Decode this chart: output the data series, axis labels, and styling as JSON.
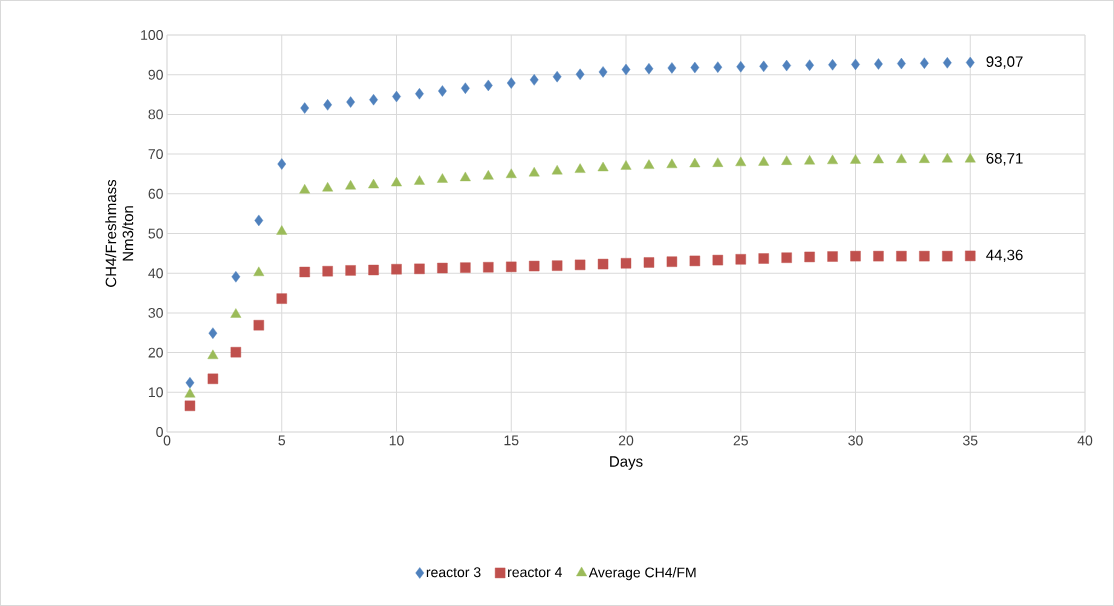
{
  "chart_data": {
    "type": "scatter",
    "xlabel": "Days",
    "ylabel": "CH4/Freshmass Nm3/ton",
    "x": [
      1,
      2,
      3,
      4,
      5,
      6,
      7,
      8,
      9,
      10,
      11,
      12,
      13,
      14,
      15,
      16,
      17,
      18,
      19,
      20,
      21,
      22,
      23,
      24,
      25,
      26,
      27,
      28,
      29,
      30,
      31,
      32,
      33,
      34,
      35
    ],
    "series": [
      {
        "name": "reactor 3",
        "color": "#4f81bd",
        "marker": "diamond",
        "values": [
          12.4,
          24.9,
          39.1,
          53.3,
          67.5,
          81.6,
          82.4,
          83.1,
          83.7,
          84.5,
          85.2,
          85.9,
          86.6,
          87.3,
          87.9,
          88.7,
          89.5,
          90.1,
          90.7,
          91.3,
          91.5,
          91.7,
          91.8,
          91.9,
          92.0,
          92.1,
          92.3,
          92.4,
          92.5,
          92.6,
          92.7,
          92.8,
          92.9,
          93.0,
          93.07
        ],
        "value_labels": [
          null,
          null,
          null,
          null,
          null,
          null,
          null,
          null,
          null,
          null,
          null,
          null,
          null,
          null,
          null,
          null,
          null,
          null,
          null,
          null,
          null,
          null,
          null,
          null,
          null,
          null,
          null,
          null,
          null,
          null,
          null,
          null,
          null,
          null,
          "93,07"
        ]
      },
      {
        "name": "reactor 4",
        "color": "#c0504d",
        "marker": "square",
        "values": [
          6.6,
          13.4,
          20.1,
          26.9,
          33.6,
          40.3,
          40.5,
          40.7,
          40.8,
          41.0,
          41.1,
          41.3,
          41.4,
          41.5,
          41.6,
          41.8,
          41.9,
          42.1,
          42.3,
          42.5,
          42.7,
          42.9,
          43.1,
          43.3,
          43.5,
          43.7,
          43.9,
          44.1,
          44.2,
          44.3,
          44.3,
          44.3,
          44.3,
          44.3,
          44.36
        ],
        "value_labels": [
          null,
          null,
          null,
          null,
          null,
          null,
          null,
          null,
          null,
          null,
          null,
          null,
          null,
          null,
          null,
          null,
          null,
          null,
          null,
          null,
          null,
          null,
          null,
          null,
          null,
          null,
          null,
          null,
          null,
          null,
          null,
          null,
          null,
          null,
          "44,36"
        ]
      },
      {
        "name": "Average CH4/FM",
        "color": "#9bbb59",
        "marker": "triangle",
        "values": [
          9.5,
          19.2,
          29.6,
          40.1,
          50.5,
          60.9,
          61.4,
          61.9,
          62.2,
          62.7,
          63.1,
          63.6,
          64.0,
          64.4,
          64.8,
          65.2,
          65.7,
          66.1,
          66.5,
          66.9,
          67.1,
          67.3,
          67.5,
          67.6,
          67.8,
          67.9,
          68.1,
          68.2,
          68.3,
          68.4,
          68.5,
          68.6,
          68.6,
          68.7,
          68.71
        ],
        "value_labels": [
          null,
          null,
          null,
          null,
          null,
          null,
          null,
          null,
          null,
          null,
          null,
          null,
          null,
          null,
          null,
          null,
          null,
          null,
          null,
          null,
          null,
          null,
          null,
          null,
          null,
          null,
          null,
          null,
          null,
          null,
          null,
          null,
          null,
          null,
          "68,71"
        ]
      }
    ],
    "xlim": [
      0,
      40
    ],
    "xticks": [
      0,
      5,
      10,
      15,
      20,
      25,
      30,
      35,
      40
    ],
    "ylim": [
      0,
      100
    ],
    "yticks": [
      0,
      10,
      20,
      30,
      40,
      50,
      60,
      70,
      80,
      90,
      100
    ],
    "grid": true,
    "legend": "bottom"
  }
}
